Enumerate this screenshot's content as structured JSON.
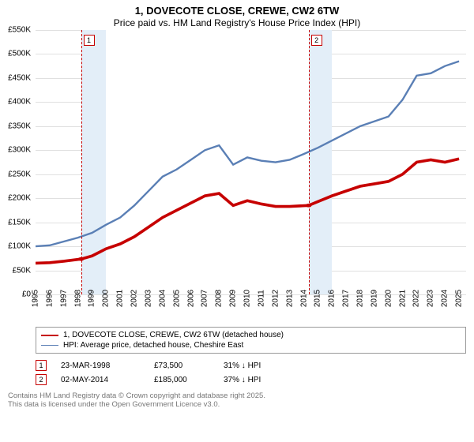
{
  "title": {
    "line1": "1, DOVECOTE CLOSE, CREWE, CW2 6TW",
    "line2": "Price paid vs. HM Land Registry's House Price Index (HPI)",
    "fontsize_line1": 13,
    "fontsize_line2": 12
  },
  "chart": {
    "type": "line",
    "background_color": "#ffffff",
    "grid_color": "#e0e0e0",
    "axis_color": "#666666",
    "x": {
      "min": 1995,
      "max": 2025.5,
      "ticks": [
        1995,
        1996,
        1997,
        1998,
        1999,
        2000,
        2001,
        2002,
        2003,
        2004,
        2005,
        2006,
        2007,
        2008,
        2009,
        2010,
        2011,
        2012,
        2013,
        2014,
        2015,
        2016,
        2017,
        2018,
        2019,
        2020,
        2021,
        2022,
        2023,
        2024,
        2025
      ],
      "label_fontsize": 10
    },
    "y": {
      "min": 0,
      "max": 550000,
      "ticks": [
        0,
        50000,
        100000,
        150000,
        200000,
        250000,
        300000,
        350000,
        400000,
        450000,
        500000,
        550000
      ],
      "tick_labels": [
        "£0",
        "£50K",
        "£100K",
        "£150K",
        "£200K",
        "£250K",
        "£300K",
        "£350K",
        "£400K",
        "£450K",
        "£500K",
        "£550K"
      ],
      "label_fontsize": 10
    },
    "bands": [
      {
        "from": 1998.22,
        "to": 2000,
        "color": "#e3eef8"
      },
      {
        "from": 2000,
        "to": 2014.34,
        "color": "#ffffff"
      },
      {
        "from": 2014.34,
        "to": 2016,
        "color": "#e3eef8"
      }
    ],
    "marker_lines": [
      {
        "x": 1998.22,
        "label": "1",
        "color": "#c60000"
      },
      {
        "x": 2014.34,
        "label": "2",
        "color": "#c60000"
      }
    ],
    "series": [
      {
        "name": "price_paid",
        "label": "1, DOVECOTE CLOSE, CREWE, CW2 6TW (detached house)",
        "color": "#c60000",
        "line_width": 2,
        "points": [
          [
            1995,
            65000
          ],
          [
            1996,
            66000
          ],
          [
            1997,
            69000
          ],
          [
            1998.22,
            73500
          ],
          [
            1999,
            80000
          ],
          [
            2000,
            95000
          ],
          [
            2001,
            105000
          ],
          [
            2002,
            120000
          ],
          [
            2003,
            140000
          ],
          [
            2004,
            160000
          ],
          [
            2005,
            175000
          ],
          [
            2006,
            190000
          ],
          [
            2007,
            205000
          ],
          [
            2008,
            210000
          ],
          [
            2009,
            185000
          ],
          [
            2010,
            195000
          ],
          [
            2011,
            188000
          ],
          [
            2012,
            183000
          ],
          [
            2013,
            183000
          ],
          [
            2014.34,
            185000
          ],
          [
            2015,
            193000
          ],
          [
            2016,
            205000
          ],
          [
            2017,
            215000
          ],
          [
            2018,
            225000
          ],
          [
            2019,
            230000
          ],
          [
            2020,
            235000
          ],
          [
            2021,
            250000
          ],
          [
            2022,
            275000
          ],
          [
            2023,
            280000
          ],
          [
            2024,
            275000
          ],
          [
            2025,
            282000
          ]
        ],
        "sale_markers": [
          {
            "x": 1998.22,
            "y": 73500
          },
          {
            "x": 2014.34,
            "y": 185000
          }
        ]
      },
      {
        "name": "hpi",
        "label": "HPI: Average price, detached house, Cheshire East",
        "color": "#5a7fb5",
        "line_width": 1.3,
        "points": [
          [
            1995,
            100000
          ],
          [
            1996,
            102000
          ],
          [
            1997,
            110000
          ],
          [
            1998,
            118000
          ],
          [
            1999,
            128000
          ],
          [
            2000,
            145000
          ],
          [
            2001,
            160000
          ],
          [
            2002,
            185000
          ],
          [
            2003,
            215000
          ],
          [
            2004,
            245000
          ],
          [
            2005,
            260000
          ],
          [
            2006,
            280000
          ],
          [
            2007,
            300000
          ],
          [
            2008,
            310000
          ],
          [
            2009,
            270000
          ],
          [
            2010,
            285000
          ],
          [
            2011,
            278000
          ],
          [
            2012,
            275000
          ],
          [
            2013,
            280000
          ],
          [
            2014,
            292000
          ],
          [
            2015,
            305000
          ],
          [
            2016,
            320000
          ],
          [
            2017,
            335000
          ],
          [
            2018,
            350000
          ],
          [
            2019,
            360000
          ],
          [
            2020,
            370000
          ],
          [
            2021,
            405000
          ],
          [
            2022,
            455000
          ],
          [
            2023,
            460000
          ],
          [
            2024,
            475000
          ],
          [
            2025,
            485000
          ]
        ]
      }
    ]
  },
  "legend": {
    "border_color": "#999999",
    "fontsize": 10,
    "items": [
      {
        "series": "price_paid"
      },
      {
        "series": "hpi"
      }
    ]
  },
  "sales": [
    {
      "tag": "1",
      "date": "23-MAR-1998",
      "price": "£73,500",
      "cmp": "31% ↓ HPI",
      "color": "#c60000"
    },
    {
      "tag": "2",
      "date": "02-MAY-2014",
      "price": "£185,000",
      "cmp": "37% ↓ HPI",
      "color": "#c60000"
    }
  ],
  "attribution": {
    "line1": "Contains HM Land Registry data © Crown copyright and database right 2025.",
    "line2": "This data is licensed under the Open Government Licence v3.0.",
    "color": "#777777",
    "fontsize": 9.5
  }
}
